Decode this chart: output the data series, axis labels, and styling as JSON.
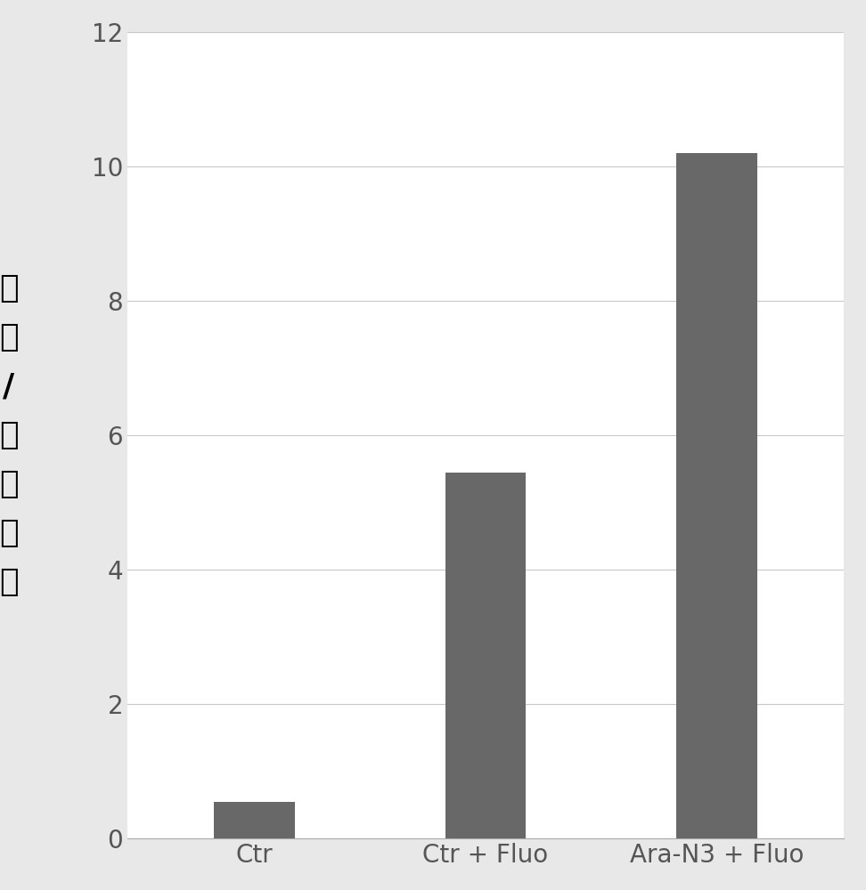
{
  "categories": [
    "Ctr",
    "Ctr + Fluo",
    "Ara-N3 + Fluo"
  ],
  "values": [
    0.55,
    5.45,
    10.2
  ],
  "bar_color": "#686868",
  "ylabel_chars": [
    "肿",
    "瘴",
    "/",
    "肌",
    "肉",
    "比",
    "率"
  ],
  "ylim": [
    0,
    12
  ],
  "yticks": [
    0,
    2,
    4,
    6,
    8,
    10,
    12
  ],
  "bar_width": 0.35,
  "plot_bg": "#ffffff",
  "figure_bg": "#e8e8e8",
  "grid_color": "#c8c8c8",
  "tick_color": "#555555",
  "ylabel_fontsize": 26,
  "tick_fontsize": 20,
  "xtick_fontsize": 20,
  "spine_color": "#aaaaaa"
}
